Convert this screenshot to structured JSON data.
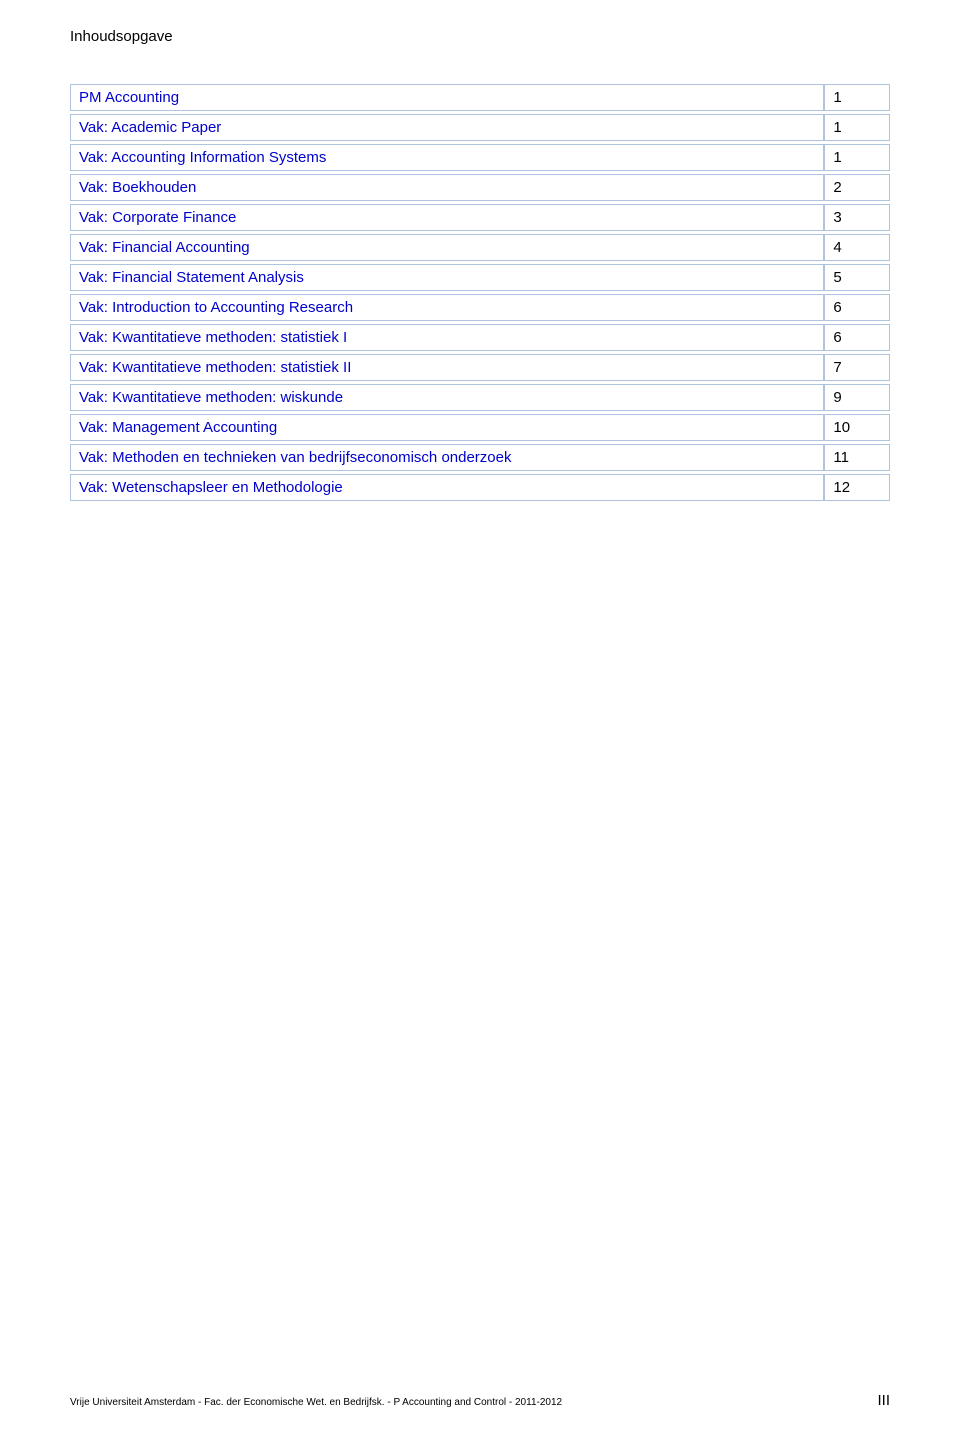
{
  "page": {
    "heading": "Inhoudsopgave",
    "link_color": "#0000cc",
    "border_color": "#b0c4de",
    "text_color": "#000000",
    "footer_left": "Vrije Universiteit Amsterdam - Fac. der Economische Wet. en Bedrijfsk. - P Accounting and Control - 2011-2012",
    "footer_right": "III"
  },
  "toc": {
    "rows": [
      {
        "label": "PM Accounting",
        "page": "1"
      },
      {
        "label": "Vak: Academic Paper",
        "page": "1"
      },
      {
        "label": "Vak: Accounting Information Systems",
        "page": "1"
      },
      {
        "label": "Vak: Boekhouden",
        "page": "2"
      },
      {
        "label": "Vak: Corporate Finance",
        "page": "3"
      },
      {
        "label": "Vak: Financial Accounting",
        "page": "4"
      },
      {
        "label": "Vak: Financial Statement Analysis",
        "page": "5"
      },
      {
        "label": "Vak: Introduction to Accounting Research",
        "page": "6"
      },
      {
        "label": "Vak: Kwantitatieve methoden: statistiek I",
        "page": "6"
      },
      {
        "label": "Vak: Kwantitatieve methoden: statistiek II",
        "page": "7"
      },
      {
        "label": "Vak: Kwantitatieve methoden: wiskunde",
        "page": "9"
      },
      {
        "label": "Vak: Management Accounting",
        "page": "10"
      },
      {
        "label": "Vak: Methoden en technieken van bedrijfseconomisch onderzoek",
        "page": "11"
      },
      {
        "label": "Vak: Wetenschapsleer en Methodologie",
        "page": "12"
      }
    ]
  }
}
